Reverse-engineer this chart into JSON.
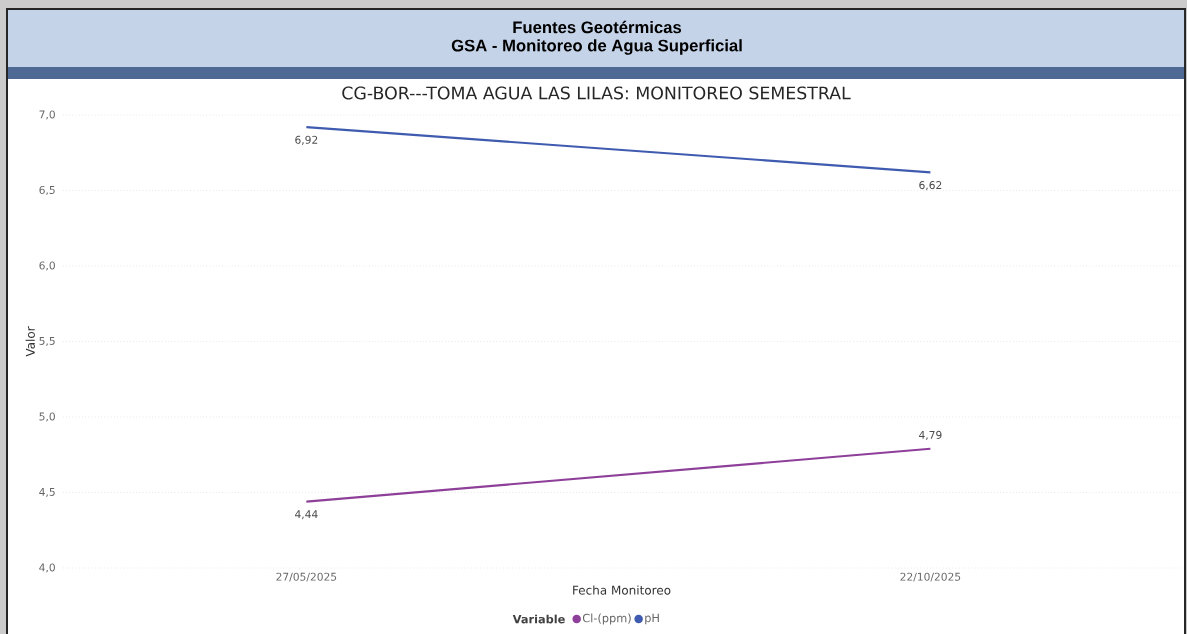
{
  "chart_data": {
    "type": "line",
    "title": "CG-BOR---TOMA AGUA LAS LILAS: MONITOREO SEMESTRAL",
    "annotations": [
      "Fuentes Geotérmicas",
      "GSA - Monitoreo de Agua Superficial"
    ],
    "xlabel": "Fecha Monitoreo",
    "ylabel": "Valor",
    "legend_title": "Variable",
    "legend": "bottom",
    "categories": [
      "27/05/2025",
      "22/10/2025"
    ],
    "series": [
      {
        "name": "Cl-(ppm)",
        "color": "#8e3f99",
        "values": [
          4.44,
          4.79
        ],
        "value_labels": [
          "4,44",
          "4,79"
        ]
      },
      {
        "name": "pH",
        "color": "#3f5bb0",
        "values": [
          6.92,
          6.62
        ],
        "value_labels": [
          "6,92",
          "6,62"
        ]
      }
    ],
    "ylim": [
      4.0,
      7.0
    ],
    "yticks": [
      {
        "value": 4.0,
        "label": "4,0"
      },
      {
        "value": 4.5,
        "label": "4,5"
      },
      {
        "value": 5.0,
        "label": "5,0"
      },
      {
        "value": 5.5,
        "label": "5,5"
      },
      {
        "value": 6.0,
        "label": "6,0"
      },
      {
        "value": 6.5,
        "label": "6,5"
      },
      {
        "value": 7.0,
        "label": "7,0"
      }
    ],
    "grid": "y",
    "marker": "none",
    "line_style": "solid"
  }
}
